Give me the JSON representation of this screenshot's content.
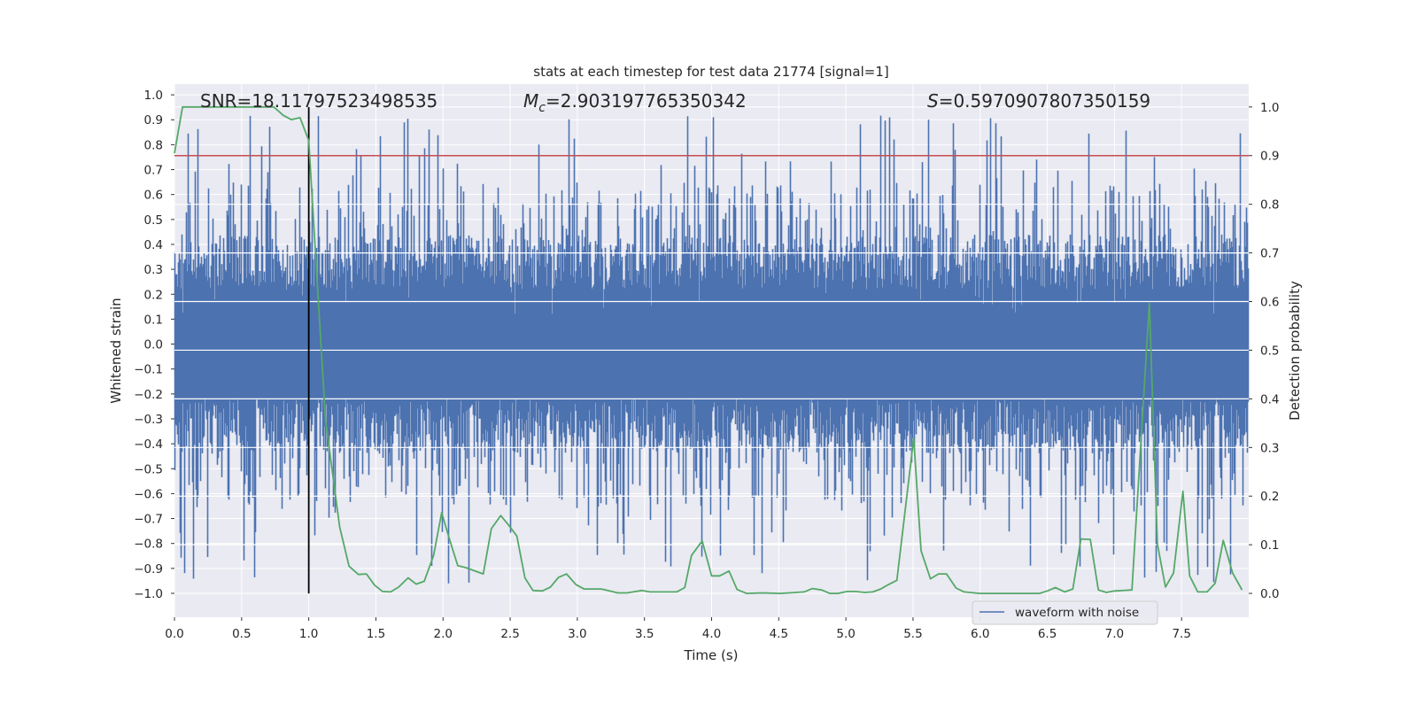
{
  "chart_data": {
    "type": "line",
    "title": "stats at each timestep for test data 21774 [signal=1]",
    "xlabel": "Time (s)",
    "ylabel": "Whitened strain",
    "ylabel_right": "Detection probability",
    "xlim": [
      0,
      8.0
    ],
    "ylim": [
      -1.096,
      1.043
    ],
    "ylim_right": [
      -0.049,
      1.047
    ],
    "grid": true,
    "x_ticks": [
      "0.0",
      "0.5",
      "1.0",
      "1.5",
      "2.0",
      "2.5",
      "3.0",
      "3.5",
      "4.0",
      "4.5",
      "5.0",
      "5.5",
      "6.0",
      "6.5",
      "7.0",
      "7.5"
    ],
    "y_ticks": [
      "1.0",
      "0.9",
      "0.8",
      "0.7",
      "0.6",
      "0.5",
      "0.4",
      "0.3",
      "0.2",
      "0.1",
      "0.0",
      "−0.1",
      "−0.2",
      "−0.3",
      "−0.4",
      "−0.5",
      "−0.6",
      "−0.7",
      "−0.8",
      "−0.9",
      "−1.0"
    ],
    "y_ticks_right": [
      "0.0",
      "0.1",
      "0.2",
      "0.3",
      "0.4",
      "0.5",
      "0.6",
      "0.7",
      "0.8",
      "0.9",
      "1.0"
    ],
    "annotations": {
      "snr": "SNR=18.11797523498535",
      "mc_symbol": "M",
      "mc_sub": "c",
      "mc_value": "=2.903197765350342",
      "s_symbol": "S",
      "s_value": "=0.5970907807350159"
    },
    "legend": {
      "placement": "bottom-right",
      "entries": [
        "waveform with noise"
      ]
    },
    "series": [
      {
        "name": "waveform with noise",
        "axis": "left",
        "color": "#4c72b0",
        "kind": "noisy strain, core about ±0.4 with spikes to ±1.0"
      },
      {
        "name": "detection probability",
        "axis": "right",
        "color": "#55a868",
        "t": [
          0,
          0.06,
          0.74,
          0.81,
          0.87,
          0.935,
          1.0,
          1.125,
          1.23,
          1.3,
          1.37,
          1.43,
          1.49,
          1.55,
          1.61,
          1.67,
          1.74,
          1.8,
          1.86,
          1.93,
          1.99,
          2.05,
          2.11,
          2.17,
          2.3,
          2.36,
          2.43,
          2.49,
          2.55,
          2.61,
          2.67,
          2.74,
          2.8,
          2.86,
          2.92,
          2.99,
          3.05,
          3.18,
          3.24,
          3.3,
          3.37,
          3.48,
          3.54,
          3.74,
          3.8,
          3.85,
          3.93,
          4.0,
          4.06,
          4.13,
          4.19,
          4.26,
          4.38,
          4.51,
          4.69,
          4.75,
          4.82,
          4.88,
          4.94,
          5.01,
          5.07,
          5.14,
          5.2,
          5.26,
          5.31,
          5.38,
          5.505,
          5.56,
          5.63,
          5.69,
          5.75,
          5.82,
          5.88,
          6.0,
          6.44,
          6.5,
          6.56,
          6.63,
          6.69,
          6.75,
          6.82,
          6.88,
          6.94,
          7.0,
          7.13,
          7.26,
          7.32,
          7.38,
          7.44,
          7.51,
          7.56,
          7.62,
          7.69,
          7.75,
          7.81,
          7.88,
          7.95
        ],
        "p": [
          0.905,
          1.0,
          1.0,
          0.983,
          0.974,
          0.978,
          0.931,
          0.355,
          0.137,
          0.056,
          0.039,
          0.04,
          0.017,
          0.004,
          0.003,
          0.013,
          0.032,
          0.019,
          0.025,
          0.078,
          0.166,
          0.11,
          0.057,
          0.053,
          0.04,
          0.133,
          0.16,
          0.14,
          0.118,
          0.032,
          0.006,
          0.005,
          0.013,
          0.033,
          0.04,
          0.018,
          0.009,
          0.009,
          0.005,
          0.001,
          0.001,
          0.006,
          0.003,
          0.003,
          0.012,
          0.078,
          0.108,
          0.036,
          0.036,
          0.046,
          0.008,
          0.0,
          0.001,
          0.0,
          0.003,
          0.01,
          0.007,
          0.0,
          0.0,
          0.004,
          0.004,
          0.002,
          0.003,
          0.009,
          0.017,
          0.027,
          0.319,
          0.088,
          0.03,
          0.04,
          0.04,
          0.011,
          0.003,
          0.0,
          0.0,
          0.005,
          0.012,
          0.003,
          0.009,
          0.112,
          0.111,
          0.007,
          0.002,
          0.005,
          0.007,
          0.596,
          0.101,
          0.013,
          0.042,
          0.21,
          0.036,
          0.003,
          0.003,
          0.021,
          0.109,
          0.042,
          0.007
        ]
      }
    ],
    "threshold": {
      "axis": "right",
      "value": 0.9,
      "color": "#c44e52"
    },
    "marker_time": {
      "value": 1.0,
      "color": "#000000"
    }
  }
}
